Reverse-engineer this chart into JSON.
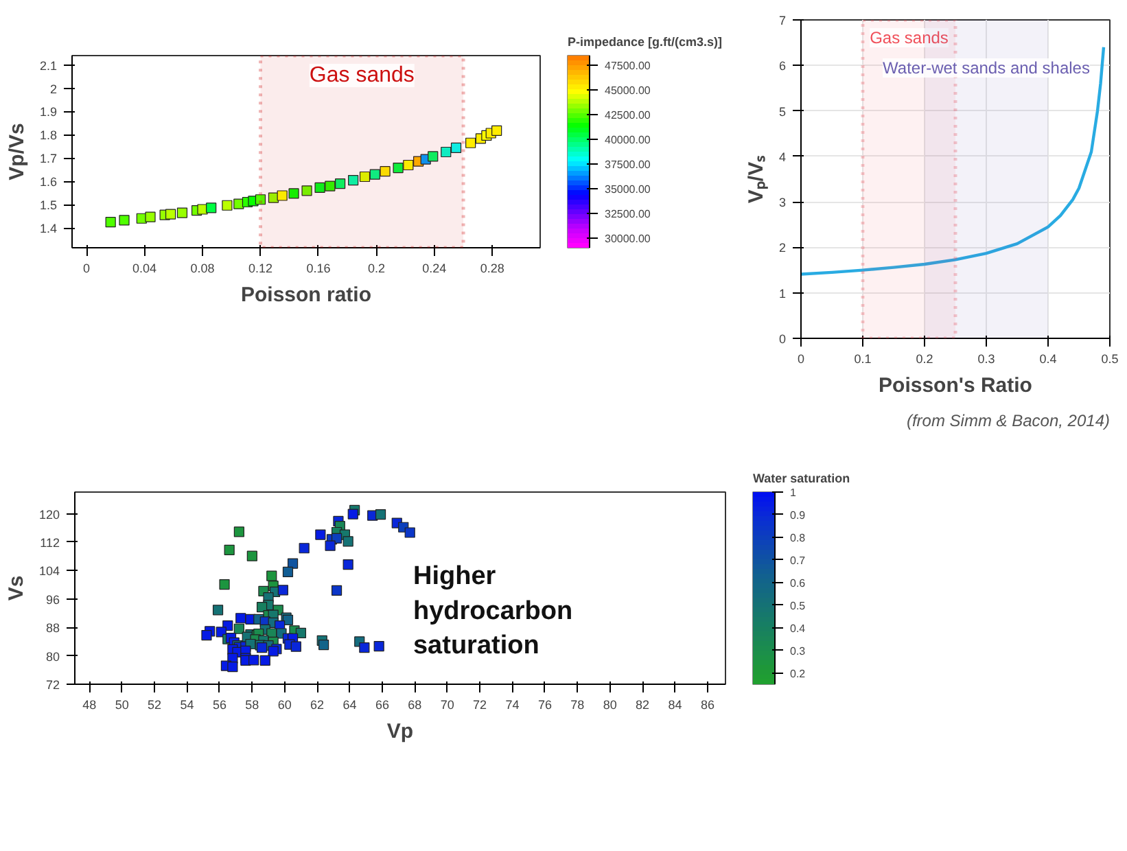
{
  "chart_data": [
    {
      "type": "scatter",
      "xlabel": "Poisson ratio",
      "ylabel": "Vp/Vs",
      "clabel": "P-impedance [g.ft/(cm3.s)]",
      "marker": "square",
      "grid": false,
      "xlim": [
        -0.01,
        0.313
      ],
      "ylim": [
        1.315,
        2.14
      ],
      "xticks": [
        0,
        0.04,
        0.08,
        0.12,
        0.16,
        0.2,
        0.24,
        0.28
      ],
      "yticks": [
        1.4,
        1.5,
        1.6,
        1.7,
        1.8,
        1.9,
        2,
        2.1
      ],
      "clim": [
        29000,
        48500
      ],
      "cticks": [
        {
          "value": 30000,
          "label": "30000.00"
        },
        {
          "value": 32500,
          "label": "32500.00"
        },
        {
          "value": 35000,
          "label": "35000.00"
        },
        {
          "value": 37500,
          "label": "37500.00"
        },
        {
          "value": 40000,
          "label": "40000.00"
        },
        {
          "value": 42500,
          "label": "42500.00"
        },
        {
          "value": 45000,
          "label": "45000.00"
        },
        {
          "value": 47500,
          "label": "47500.00"
        }
      ],
      "bands": [
        {
          "axis": "x",
          "from": 0.12,
          "to": 0.26,
          "label": "Gas sands",
          "color": "#cc1010"
        }
      ],
      "x": [
        0.0166,
        0.026,
        0.038,
        0.044,
        0.054,
        0.058,
        0.066,
        0.076,
        0.08,
        0.086,
        0.097,
        0.105,
        0.111,
        0.115,
        0.12,
        0.129,
        0.135,
        0.143,
        0.152,
        0.161,
        0.168,
        0.175,
        0.184,
        0.192,
        0.199,
        0.206,
        0.215,
        0.222,
        0.229,
        0.234,
        0.239,
        0.248,
        0.255,
        0.265,
        0.272,
        0.276,
        0.279,
        0.283
      ],
      "values": [
        1.425,
        1.433,
        1.441,
        1.447,
        1.456,
        1.459,
        1.465,
        1.475,
        1.48,
        1.486,
        1.497,
        1.503,
        1.511,
        1.516,
        1.522,
        1.53,
        1.539,
        1.548,
        1.56,
        1.573,
        1.58,
        1.59,
        1.605,
        1.62,
        1.63,
        1.643,
        1.658,
        1.67,
        1.686,
        1.695,
        1.707,
        1.726,
        1.744,
        1.765,
        1.784,
        1.797,
        1.807,
        1.818
      ],
      "cvalues": [
        42500,
        42500,
        43000,
        43500,
        43500,
        44000,
        43500,
        43000,
        44000,
        40500,
        44000,
        43000,
        42000,
        41500,
        42500,
        43500,
        45000,
        41500,
        43000,
        41000,
        42000,
        40000,
        39000,
        44500,
        39500,
        45500,
        40500,
        45000,
        47000,
        36500,
        40000,
        38500,
        38000,
        45500,
        45500,
        45000,
        45500,
        45500
      ]
    },
    {
      "type": "line",
      "xlabel": "Poisson's Ratio",
      "ylabel": "Vₚ/Vₛ",
      "grid": true,
      "xlim": [
        0,
        0.5
      ],
      "ylim": [
        0,
        7
      ],
      "xticks": [
        0,
        0.1,
        0.2,
        0.3,
        0.4,
        0.5
      ],
      "yticks": [
        0,
        1,
        2,
        3,
        4,
        5,
        6,
        7
      ],
      "bands": [
        {
          "axis": "x",
          "from": 0.1,
          "to": 0.25,
          "label": "Gas sands",
          "color": "#f0505a"
        },
        {
          "axis": "x",
          "from": 0.2,
          "to": 0.4,
          "label": "Water-wet sands and shales",
          "color": "#6b5fb0"
        }
      ],
      "annotations": [
        "(from Simm & Bacon, 2014)"
      ],
      "series": [
        {
          "color": "#29abe2",
          "x": [
            0,
            0.05,
            0.1,
            0.15,
            0.2,
            0.25,
            0.3,
            0.35,
            0.4,
            0.42,
            0.44,
            0.45,
            0.46,
            0.47,
            0.48,
            0.485,
            0.49
          ],
          "values": [
            1.41,
            1.45,
            1.5,
            1.56,
            1.63,
            1.73,
            1.87,
            2.08,
            2.45,
            2.7,
            3.05,
            3.3,
            3.7,
            4.1,
            5.0,
            5.6,
            6.4
          ]
        }
      ]
    },
    {
      "type": "scatter",
      "xlabel": "Vp",
      "ylabel": "Vs",
      "clabel": "Water saturation",
      "marker": "square",
      "grid": false,
      "xlim": [
        47.1,
        87.1
      ],
      "ylim": [
        72,
        126.1
      ],
      "xticks": [
        48,
        50,
        52,
        54,
        56,
        58,
        60,
        62,
        64,
        66,
        68,
        70,
        72,
        74,
        76,
        78,
        80,
        82,
        84,
        86
      ],
      "yticks": [
        72,
        80,
        88,
        96,
        104,
        112,
        120
      ],
      "clim": [
        0.15,
        1
      ],
      "cticks": [
        0.2,
        0.3,
        0.4,
        0.5,
        0.6,
        0.7,
        0.8,
        0.9,
        1
      ],
      "annotations": [
        "Higher hydrocarbon saturation"
      ],
      "x": [
        57.2,
        56.6,
        58.0,
        64.3,
        64.2,
        65.4,
        65.9,
        63.3,
        63.4,
        63.2,
        63.7,
        63.9,
        62.2,
        62.9,
        63.2,
        62.8,
        61.2,
        66.9,
        67.3,
        67.7,
        63.9,
        60.5,
        60.2,
        59.2,
        56.3,
        59.3,
        58.7,
        59.4,
        59.9,
        63.2,
        59.0,
        59.0,
        58.6,
        55.9,
        59.6,
        59.0,
        59.3,
        57.3,
        57.9,
        58.4,
        60.1,
        60.2,
        58.8,
        59.3,
        59.7,
        56.5,
        57.2,
        58.8,
        60.6,
        61.0,
        55.4,
        56.1,
        55.2,
        57.9,
        58.3,
        58.4,
        59.2,
        59.8,
        56.5,
        56.7,
        57.7,
        58.2,
        58.7,
        59.3,
        60.2,
        60.5,
        62.3,
        62.4,
        64.6,
        64.9,
        65.8,
        56.9,
        57.1,
        57.2,
        57.6,
        57.9,
        58.5,
        59.0,
        59.5,
        60.3,
        60.7,
        56.8,
        57.1,
        57.6,
        58.6,
        59.3,
        56.8,
        57.6,
        57.6,
        58.1,
        58.8,
        56.4,
        56.8
      ],
      "values": [
        114.9,
        109.8,
        108.1,
        121.0,
        119.9,
        119.5,
        119.8,
        117.9,
        116.5,
        114.8,
        114.1,
        112.2,
        114.1,
        112.8,
        113.1,
        111.0,
        110.3,
        117.4,
        116.2,
        114.7,
        105.7,
        106.0,
        103.6,
        102.5,
        100.1,
        99.7,
        98.2,
        98.0,
        98.5,
        98.4,
        96.4,
        94.3,
        93.7,
        92.9,
        92.9,
        91.4,
        91.5,
        90.6,
        90.3,
        90.3,
        90.7,
        90.1,
        89.6,
        89.3,
        88.5,
        88.5,
        87.6,
        87.4,
        87.1,
        86.4,
        86.9,
        86.7,
        85.8,
        86.0,
        85.8,
        86.2,
        86.3,
        86.3,
        84.7,
        85.0,
        85.3,
        84.6,
        84.3,
        83.9,
        84.9,
        84.9,
        84.3,
        83.1,
        84.0,
        82.3,
        82.7,
        83.7,
        82.9,
        82.4,
        82.6,
        83.3,
        83.0,
        82.9,
        81.9,
        83.2,
        82.6,
        81.8,
        81.0,
        81.4,
        82.3,
        81.3,
        79.3,
        79.3,
        78.7,
        78.8,
        78.7,
        77.2,
        76.9
      ],
      "cvalues": [
        0.25,
        0.25,
        0.25,
        0.45,
        0.95,
        0.9,
        0.5,
        0.9,
        0.35,
        0.4,
        0.45,
        0.5,
        0.95,
        0.85,
        0.8,
        0.9,
        0.9,
        0.9,
        0.8,
        0.85,
        0.9,
        0.7,
        0.65,
        0.25,
        0.25,
        0.25,
        0.3,
        0.5,
        0.9,
        0.85,
        0.5,
        0.45,
        0.4,
        0.5,
        0.3,
        0.3,
        0.45,
        0.95,
        0.95,
        0.6,
        0.55,
        0.6,
        0.85,
        0.55,
        0.9,
        0.95,
        0.35,
        0.5,
        0.3,
        0.45,
        0.95,
        0.95,
        0.95,
        0.5,
        0.3,
        0.3,
        0.35,
        0.55,
        0.45,
        0.95,
        0.5,
        0.3,
        0.45,
        0.3,
        0.9,
        0.95,
        0.5,
        0.6,
        0.55,
        0.9,
        0.9,
        0.95,
        0.55,
        0.9,
        0.9,
        0.5,
        0.5,
        0.55,
        0.9,
        0.9,
        0.9,
        0.95,
        0.95,
        0.95,
        0.9,
        0.95,
        0.95,
        0.95,
        0.95,
        0.95,
        0.95,
        0.95,
        0.95
      ]
    }
  ]
}
